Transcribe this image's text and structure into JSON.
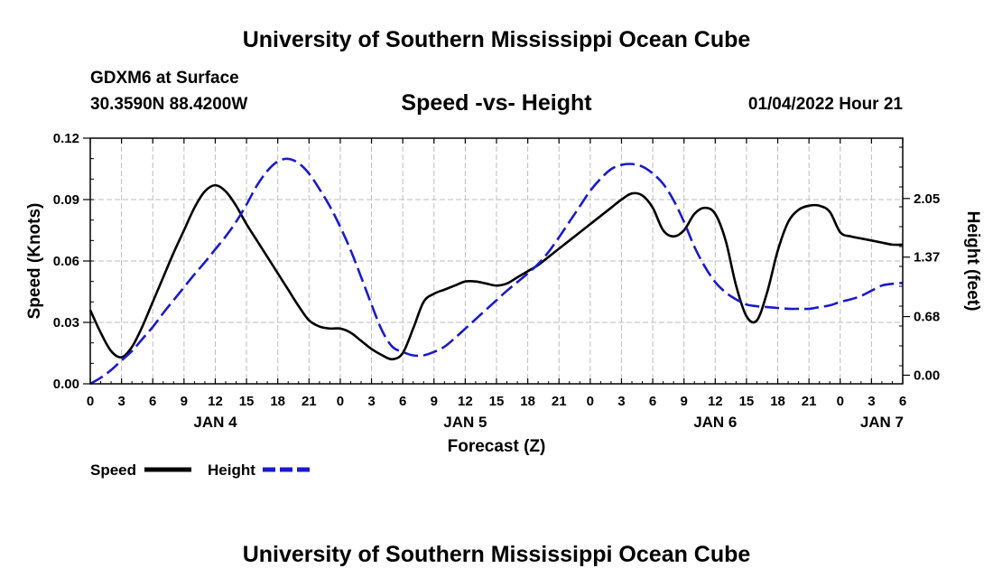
{
  "header": {
    "title": "University of Southern Mississippi Ocean Cube",
    "station": "GDXM6 at Surface",
    "coords": "30.3590N  88.4200W",
    "subtitle": "Speed -vs- Height",
    "datetime": "01/04/2022 Hour 21"
  },
  "footer": {
    "title": "University of Southern Mississippi Ocean Cube"
  },
  "chart_data": {
    "type": "line",
    "title": "Speed -vs- Height",
    "xlabel": "Forecast (Z)",
    "ylabel": "Speed (Knots)",
    "y2label": "Height (feet)",
    "x_range_hours": [
      0,
      78
    ],
    "x_tick_labels": [
      "0",
      "3",
      "6",
      "9",
      "12",
      "15",
      "18",
      "21",
      "0",
      "3",
      "6",
      "9",
      "12",
      "15",
      "18",
      "21",
      "0",
      "3",
      "6",
      "9",
      "12",
      "15",
      "18",
      "21",
      "0",
      "3",
      "6"
    ],
    "date_labels": [
      {
        "label": "JAN 4",
        "hour": 12
      },
      {
        "label": "JAN 5",
        "hour": 36
      },
      {
        "label": "JAN 6",
        "hour": 60
      },
      {
        "label": "JAN 7",
        "hour": 76
      }
    ],
    "ylim": [
      0,
      0.12
    ],
    "y_ticks": [
      0,
      0.03,
      0.06,
      0.09,
      0.12
    ],
    "y_tick_labels": [
      "0.00",
      "0.03",
      "0.06",
      "0.09",
      "0.12"
    ],
    "y2lim": [
      -0.1,
      2.75
    ],
    "y2_ticks": [
      0,
      0.68,
      1.37,
      2.05
    ],
    "y2_tick_labels": [
      "0.00",
      "0.68",
      "1.37",
      "2.05"
    ],
    "legend": {
      "position": "bottom-left",
      "items": [
        {
          "label": "Speed",
          "color": "#000000",
          "style": "solid"
        },
        {
          "label": "Height",
          "color": "#1a1acc",
          "style": "dashed"
        }
      ]
    },
    "series": [
      {
        "name": "Speed",
        "axis": "left",
        "color": "#000000",
        "style": "solid",
        "x": [
          0,
          1,
          2,
          3,
          4,
          5,
          6,
          7,
          8,
          9,
          10,
          11,
          12,
          13,
          14,
          15,
          16,
          17,
          18,
          19,
          20,
          21,
          22,
          23,
          24,
          25,
          26,
          27,
          28,
          29,
          30,
          31,
          32,
          33,
          34,
          35,
          36,
          37,
          38,
          39,
          40,
          41,
          42,
          43,
          44,
          45,
          46,
          47,
          48,
          49,
          50,
          51,
          52,
          53,
          54,
          55,
          56,
          57,
          58,
          59,
          60,
          61,
          62,
          63,
          64,
          65,
          66,
          67,
          68,
          69,
          70,
          71,
          72,
          73,
          74,
          75,
          76,
          77,
          78
        ],
        "values": [
          0.036,
          0.025,
          0.016,
          0.013,
          0.018,
          0.028,
          0.04,
          0.052,
          0.064,
          0.075,
          0.086,
          0.094,
          0.097,
          0.094,
          0.087,
          0.078,
          0.07,
          0.062,
          0.054,
          0.046,
          0.038,
          0.031,
          0.028,
          0.027,
          0.027,
          0.025,
          0.021,
          0.017,
          0.014,
          0.012,
          0.015,
          0.027,
          0.04,
          0.044,
          0.046,
          0.048,
          0.05,
          0.05,
          0.049,
          0.048,
          0.049,
          0.052,
          0.055,
          0.058,
          0.062,
          0.066,
          0.07,
          0.074,
          0.078,
          0.082,
          0.086,
          0.09,
          0.093,
          0.092,
          0.086,
          0.075,
          0.072,
          0.075,
          0.083,
          0.086,
          0.083,
          0.07,
          0.048,
          0.033,
          0.031,
          0.045,
          0.065,
          0.079,
          0.085,
          0.087,
          0.087,
          0.084,
          0.074,
          0.072,
          0.071,
          0.07,
          0.069,
          0.068,
          0.068
        ]
      },
      {
        "name": "Height",
        "axis": "right",
        "color": "#1a1acc",
        "style": "dashed",
        "x": [
          0,
          1,
          2,
          3,
          4,
          5,
          6,
          7,
          8,
          9,
          10,
          11,
          12,
          13,
          14,
          15,
          16,
          17,
          18,
          19,
          20,
          21,
          22,
          23,
          24,
          25,
          26,
          27,
          28,
          29,
          30,
          31,
          32,
          33,
          34,
          35,
          36,
          37,
          38,
          39,
          40,
          41,
          42,
          43,
          44,
          45,
          46,
          47,
          48,
          49,
          50,
          51,
          52,
          53,
          54,
          55,
          56,
          57,
          58,
          59,
          60,
          61,
          62,
          63,
          64,
          65,
          66,
          67,
          68,
          69,
          70,
          71,
          72,
          73,
          74,
          75,
          76,
          77,
          78
        ],
        "values": [
          -0.1,
          -0.03,
          0.06,
          0.17,
          0.28,
          0.42,
          0.56,
          0.72,
          0.87,
          1.02,
          1.17,
          1.31,
          1.46,
          1.61,
          1.78,
          1.98,
          2.2,
          2.37,
          2.48,
          2.51,
          2.46,
          2.34,
          2.16,
          1.96,
          1.72,
          1.45,
          1.14,
          0.82,
          0.52,
          0.33,
          0.27,
          0.23,
          0.23,
          0.27,
          0.33,
          0.43,
          0.54,
          0.65,
          0.76,
          0.87,
          0.98,
          1.08,
          1.18,
          1.29,
          1.43,
          1.6,
          1.78,
          1.96,
          2.14,
          2.28,
          2.39,
          2.44,
          2.45,
          2.42,
          2.34,
          2.22,
          2.03,
          1.78,
          1.49,
          1.26,
          1.08,
          0.96,
          0.88,
          0.82,
          0.8,
          0.79,
          0.78,
          0.77,
          0.77,
          0.77,
          0.79,
          0.81,
          0.85,
          0.88,
          0.92,
          0.98,
          1.04,
          1.06,
          1.07
        ]
      }
    ]
  }
}
